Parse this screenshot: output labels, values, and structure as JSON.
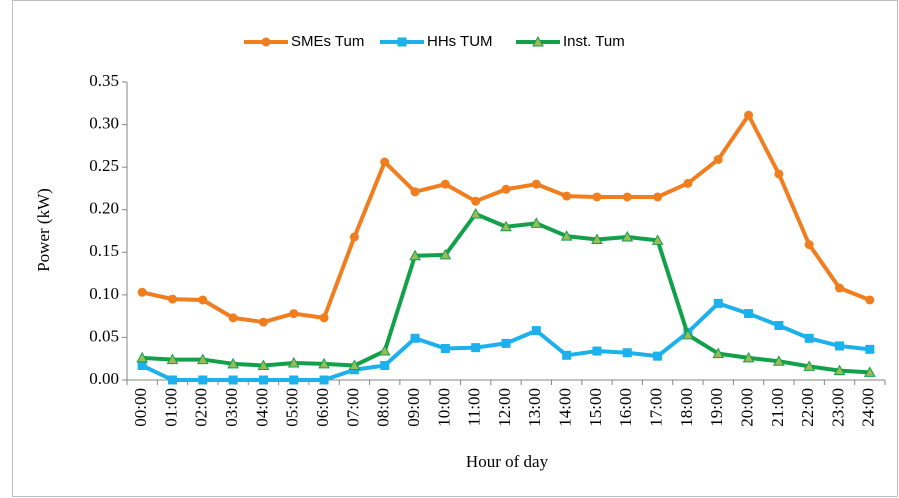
{
  "chart_data": {
    "type": "line",
    "x_label": "Hour of day",
    "y_label": "Power (kW)",
    "categories": [
      "00:00",
      "01:00",
      "02:00",
      "03:00",
      "04:00",
      "05:00",
      "06:00",
      "07:00",
      "08:00",
      "09:00",
      "10:00",
      "11:00",
      "12:00",
      "13:00",
      "14:00",
      "15:00",
      "16:00",
      "17:00",
      "18:00",
      "19:00",
      "20:00",
      "21:00",
      "22:00",
      "23:00",
      "24:00"
    ],
    "series": [
      {
        "name": "SMEs Tum",
        "color": "#f07d1e",
        "marker": "circle",
        "values": [
          0.103,
          0.095,
          0.094,
          0.073,
          0.068,
          0.078,
          0.073,
          0.168,
          0.256,
          0.221,
          0.23,
          0.21,
          0.224,
          0.23,
          0.216,
          0.215,
          0.215,
          0.215,
          0.231,
          0.259,
          0.311,
          0.242,
          0.159,
          0.108,
          0.094
        ]
      },
      {
        "name": "HHs TUM",
        "color": "#1cb0ec",
        "marker": "square",
        "values": [
          0.017,
          0,
          0,
          0,
          0,
          0,
          0,
          0.012,
          0.017,
          0.049,
          0.037,
          0.038,
          0.043,
          0.058,
          0.029,
          0.034,
          0.032,
          0.028,
          0.056,
          0.09,
          0.078,
          0.064,
          0.049,
          0.04,
          0.036
        ]
      },
      {
        "name": "Inst. Tum",
        "color": "#12a04a",
        "marker": "triangle",
        "values": [
          0.026,
          0.024,
          0.024,
          0.019,
          0.017,
          0.02,
          0.019,
          0.017,
          0.034,
          0.146,
          0.147,
          0.195,
          0.18,
          0.184,
          0.169,
          0.165,
          0.168,
          0.164,
          0.053,
          0.031,
          0.026,
          0.022,
          0.016,
          0.011,
          0.009
        ]
      }
    ],
    "ylim": [
      0,
      0.35
    ],
    "yticks": [
      {
        "value": 0,
        "label": "0.00"
      },
      {
        "value": 0.05,
        "label": "0.05"
      },
      {
        "value": 0.1,
        "label": "0.10"
      },
      {
        "value": 0.15,
        "label": "0.15"
      },
      {
        "value": 0.2,
        "label": "0.20"
      },
      {
        "value": 0.25,
        "label": "0.25"
      },
      {
        "value": 0.3,
        "label": "0.30"
      },
      {
        "value": 0.35,
        "label": "0.35"
      }
    ],
    "legend": "top"
  }
}
